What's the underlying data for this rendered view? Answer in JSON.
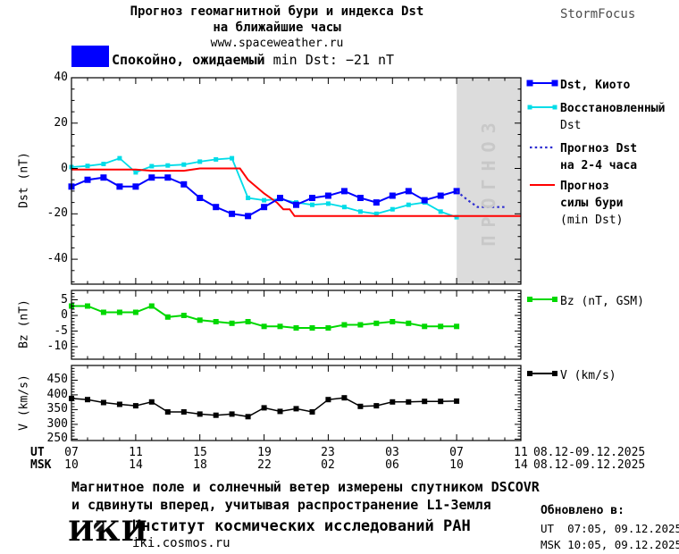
{
  "header": {
    "title_line1": "Прогноз геомагнитной бури и индекса Dst",
    "title_line2": "на ближайшие часы",
    "website": "www.spaceweather.ru",
    "brand": "StormFocus"
  },
  "status": {
    "label_prefix": "Спокойно, ожидаемый",
    "label_value": "min Dst: −21 nT",
    "box_color": "#0000ff"
  },
  "chart_data": {
    "type": "line",
    "x": {
      "unit": "hours",
      "span_hours": 28,
      "tick_hours": [
        0,
        4,
        8,
        12,
        16,
        20,
        24,
        28
      ],
      "ut_row_label": "UT",
      "msk_row_label": "MSK",
      "ut_tick_labels": [
        "07",
        "11",
        "15",
        "19",
        "23",
        "03",
        "07",
        "11"
      ],
      "msk_tick_labels": [
        "10",
        "14",
        "18",
        "22",
        "02",
        "06",
        "10",
        "14"
      ],
      "ut_date": "08.12-09.12.2025",
      "msk_date": "08.12-09.12.2025"
    },
    "panels": [
      {
        "name": "dst",
        "ylabel": "Dst (nT)",
        "ylim": [
          40,
          -51
        ],
        "ytick_values": [
          40,
          20,
          0,
          -20,
          -40
        ],
        "ytick_labels": [
          "40",
          "20",
          "0",
          "-20",
          "-40"
        ],
        "minor_step": 5,
        "forecast_region": {
          "start_hour": 24,
          "end_hour": 28,
          "label": "ПРОГНОЗ",
          "bg": "#dcdcdc",
          "label_color": "#c8c8c8"
        },
        "series": [
          {
            "name": "dst_reconstructed",
            "color": "#00dce8",
            "width": 1.8,
            "marker": "square",
            "marker_size": 5,
            "x": [
              0,
              1,
              2,
              3,
              4,
              5,
              6,
              7,
              8,
              9,
              10,
              11,
              12,
              13,
              14,
              15,
              16,
              17,
              18,
              19,
              20,
              21,
              22,
              23,
              24
            ],
            "y": [
              0.6,
              1.1,
              2,
              4.5,
              -1.7,
              1,
              1.3,
              1.7,
              3,
              4,
              4.5,
              -13,
              -14,
              -13.5,
              -15,
              -16,
              -15.5,
              -17,
              -19,
              -20,
              -18,
              -16,
              -15,
              -19,
              -21.5
            ]
          },
          {
            "name": "storm_forecast_min_dst",
            "color": "#ff0000",
            "width": 2,
            "x": [
              0,
              4,
              5,
              7,
              8,
              10.5,
              11,
              12,
              12.8,
              13.2,
              13.6,
              13.9,
              28
            ],
            "y": [
              -0.5,
              -0.5,
              -1,
              -1,
              0,
              0,
              -5,
              -11,
              -15,
              -18,
              -18,
              -21,
              -21
            ]
          },
          {
            "name": "dst_kyoto",
            "color": "#0000ff",
            "width": 2,
            "marker": "square",
            "marker_size": 7,
            "x": [
              0,
              1,
              2,
              3,
              4,
              5,
              6,
              7,
              8,
              9,
              10,
              11,
              12,
              13,
              14,
              15,
              16,
              17,
              18,
              19,
              20,
              21,
              22,
              23,
              24
            ],
            "y": [
              -8,
              -5,
              -4,
              -8,
              -8,
              -4,
              -4,
              -7,
              -13,
              -17,
              -20,
              -21,
              -17,
              -13,
              -16,
              -13,
              -12,
              -10,
              -13,
              -15,
              -12,
              -10,
              -14,
              -12,
              -10
            ]
          },
          {
            "name": "dst_forecast_2_4h",
            "color": "#2c2cd0",
            "width": 2.2,
            "dotted": true,
            "x": [
              24,
              24.7,
              25.3,
              27.1
            ],
            "y": [
              -10,
              -14,
              -17,
              -17
            ]
          }
        ]
      },
      {
        "name": "bz",
        "ylabel": "Bz (nT)",
        "ylim": [
          8,
          -14
        ],
        "ytick_values": [
          5,
          0,
          -5,
          -10
        ],
        "ytick_labels": [
          "5",
          "0",
          "-5",
          "-10"
        ],
        "minor_step": 1,
        "series": [
          {
            "name": "bz_gsm",
            "color": "#00d800",
            "width": 2,
            "marker": "square",
            "marker_size": 6,
            "x": [
              0,
              1,
              2,
              3,
              4,
              5,
              6,
              7,
              8,
              9,
              10,
              11,
              12,
              13,
              14,
              15,
              16,
              17,
              18,
              19,
              20,
              21,
              22,
              23,
              24
            ],
            "y": [
              3,
              3,
              1,
              1,
              1,
              3,
              -0.5,
              0,
              -1.5,
              -2,
              -2.5,
              -2,
              -3.5,
              -3.5,
              -4,
              -4,
              -4,
              -3,
              -3,
              -2.5,
              -2,
              -2.5,
              -3.5,
              -3.5,
              -3.5
            ]
          }
        ]
      },
      {
        "name": "v",
        "ylabel": "V (km/s)",
        "ylim": [
          500,
          245
        ],
        "ytick_values": [
          450,
          400,
          350,
          300,
          250
        ],
        "ytick_labels": [
          "450",
          "400",
          "350",
          "300",
          "250"
        ],
        "minor_step": 10,
        "series": [
          {
            "name": "solar_wind_speed",
            "color": "#000000",
            "width": 1.5,
            "marker": "square",
            "marker_size": 6,
            "x": [
              0,
              1,
              2,
              3,
              4,
              5,
              6,
              7,
              8,
              9,
              10,
              11,
              12,
              13,
              14,
              15,
              16,
              17,
              18,
              19,
              20,
              21,
              22,
              23,
              24
            ],
            "y": [
              388,
              384,
              374,
              368,
              363,
              376,
              342,
              342,
              335,
              331,
              335,
              326,
              356,
              344,
              353,
              342,
              384,
              390,
              361,
              363,
              376,
              376,
              378,
              378,
              379
            ]
          }
        ]
      }
    ]
  },
  "legend": {
    "dst_kyoto": "Dst, Киото",
    "recon1": "Восстановленный",
    "recon2": "Dst",
    "fc1": "Прогноз Dst",
    "fc2": "на 2-4 часа",
    "storm1": "Прогноз",
    "storm2": "силы бури",
    "storm3": "(min Dst)",
    "bz": "Bz (nT, GSM)",
    "v": "V (km/s)"
  },
  "footer": {
    "note_line1": "Магнитное поле и солнечный ветер измерены спутником DSCOVR",
    "note_line2": "и сдвинуты вперед, учитывая распространение L1-Земля",
    "logo": "ИКИ",
    "institute": "Институт космических исследований РАН",
    "institute_site": "iki.cosmos.ru",
    "updated_heading": "Обновлено в:",
    "updated_ut": "UT  07:05, 09.12.2025",
    "updated_msk": "MSK 10:05, 09.12.2025"
  }
}
